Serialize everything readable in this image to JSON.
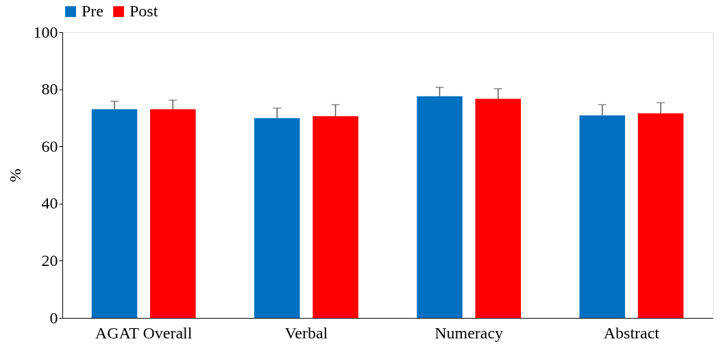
{
  "chart_data": {
    "type": "bar",
    "ylabel": "%",
    "categories": [
      "AGAT Overall",
      "Verbal",
      "Numeracy",
      "Abstract"
    ],
    "series": [
      {
        "name": "Pre",
        "color": "#0070c0",
        "values": [
          73.0,
          69.9,
          77.6,
          70.9
        ],
        "errors": [
          [
            73.0,
            75.8
          ],
          [
            69.9,
            73.4
          ],
          [
            77.6,
            80.7
          ],
          [
            70.9,
            74.6
          ]
        ]
      },
      {
        "name": "Post",
        "color": "#ff0000",
        "values": [
          73.0,
          70.6,
          76.7,
          71.6
        ],
        "errors": [
          [
            73.0,
            76.2
          ],
          [
            70.6,
            74.6
          ],
          [
            76.7,
            80.2
          ],
          [
            71.6,
            75.3
          ]
        ]
      }
    ],
    "ylim": [
      0,
      100
    ],
    "yticks": [
      0,
      20,
      40,
      60,
      80,
      100
    ],
    "grid": false,
    "legend": "top"
  }
}
